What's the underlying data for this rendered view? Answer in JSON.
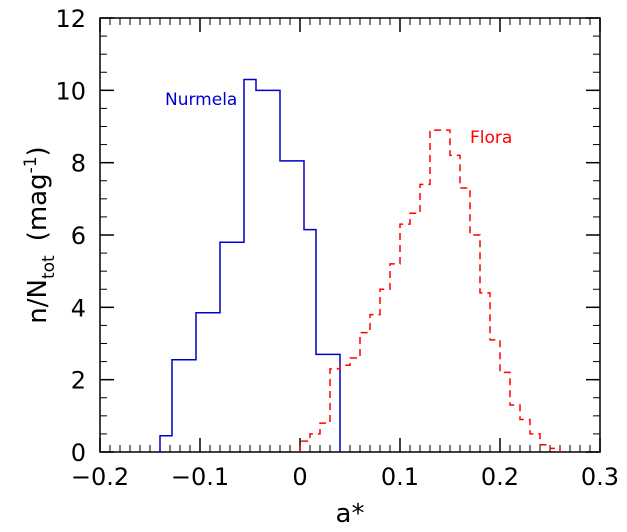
{
  "chart_data": {
    "type": "histogram",
    "xlabel": "a*",
    "ylabel": "n/N",
    "ylabel_subscript": "tot",
    "ylabel_unit_open": "(mag",
    "ylabel_unit_exp": "-1",
    "ylabel_unit_close": ")",
    "xlim": [
      -0.2,
      0.3
    ],
    "ylim": [
      0,
      12
    ],
    "x_ticks": [
      {
        "value": -0.2,
        "label": "−0.2"
      },
      {
        "value": -0.1,
        "label": "−0.1"
      },
      {
        "value": 0,
        "label": "0"
      },
      {
        "value": 0.1,
        "label": "0.1"
      },
      {
        "value": 0.2,
        "label": "0.2"
      },
      {
        "value": 0.3,
        "label": "0.3"
      }
    ],
    "y_ticks": [
      {
        "value": 0,
        "label": "0"
      },
      {
        "value": 2,
        "label": "2"
      },
      {
        "value": 4,
        "label": "4"
      },
      {
        "value": 6,
        "label": "6"
      },
      {
        "value": 8,
        "label": "8"
      },
      {
        "value": 10,
        "label": "10"
      },
      {
        "value": 12,
        "label": "12"
      }
    ],
    "grid": false,
    "series": [
      {
        "name": "Nurmela",
        "color": "#0000cc",
        "style": "solid",
        "label_anchor": {
          "x": -0.135,
          "y": 9.6
        },
        "bins": [
          {
            "x0": -0.14,
            "x1": -0.128,
            "y": 0.45
          },
          {
            "x0": -0.128,
            "x1": -0.116,
            "y": 2.55
          },
          {
            "x0": -0.116,
            "x1": -0.104,
            "y": 2.55
          },
          {
            "x0": -0.104,
            "x1": -0.092,
            "y": 3.85
          },
          {
            "x0": -0.092,
            "x1": -0.08,
            "y": 3.85
          },
          {
            "x0": -0.08,
            "x1": -0.068,
            "y": 5.8
          },
          {
            "x0": -0.068,
            "x1": -0.056,
            "y": 5.8
          },
          {
            "x0": -0.056,
            "x1": -0.044,
            "y": 10.3
          },
          {
            "x0": -0.044,
            "x1": -0.032,
            "y": 10.0
          },
          {
            "x0": -0.032,
            "x1": -0.02,
            "y": 10.0
          },
          {
            "x0": -0.02,
            "x1": -0.008,
            "y": 8.05
          },
          {
            "x0": -0.008,
            "x1": 0.004,
            "y": 8.05
          },
          {
            "x0": 0.004,
            "x1": 0.016,
            "y": 6.15
          },
          {
            "x0": 0.016,
            "x1": 0.028,
            "y": 2.7
          },
          {
            "x0": 0.028,
            "x1": 0.04,
            "y": 2.7
          }
        ]
      },
      {
        "name": "Flora",
        "color": "#ff0000",
        "style": "dashed",
        "label_anchor": {
          "x": 0.17,
          "y": 8.55
        },
        "bins": [
          {
            "x0": 0.0,
            "x1": 0.01,
            "y": 0.3
          },
          {
            "x0": 0.01,
            "x1": 0.02,
            "y": 0.5
          },
          {
            "x0": 0.02,
            "x1": 0.03,
            "y": 0.8
          },
          {
            "x0": 0.03,
            "x1": 0.04,
            "y": 2.3
          },
          {
            "x0": 0.04,
            "x1": 0.05,
            "y": 2.4
          },
          {
            "x0": 0.05,
            "x1": 0.06,
            "y": 2.6
          },
          {
            "x0": 0.06,
            "x1": 0.07,
            "y": 3.3
          },
          {
            "x0": 0.07,
            "x1": 0.08,
            "y": 3.8
          },
          {
            "x0": 0.08,
            "x1": 0.09,
            "y": 4.5
          },
          {
            "x0": 0.09,
            "x1": 0.1,
            "y": 5.2
          },
          {
            "x0": 0.1,
            "x1": 0.11,
            "y": 6.3
          },
          {
            "x0": 0.11,
            "x1": 0.12,
            "y": 6.6
          },
          {
            "x0": 0.12,
            "x1": 0.13,
            "y": 7.4
          },
          {
            "x0": 0.13,
            "x1": 0.14,
            "y": 8.9
          },
          {
            "x0": 0.14,
            "x1": 0.15,
            "y": 8.9
          },
          {
            "x0": 0.15,
            "x1": 0.16,
            "y": 8.2
          },
          {
            "x0": 0.16,
            "x1": 0.17,
            "y": 7.3
          },
          {
            "x0": 0.17,
            "x1": 0.18,
            "y": 6.0
          },
          {
            "x0": 0.18,
            "x1": 0.19,
            "y": 4.4
          },
          {
            "x0": 0.19,
            "x1": 0.2,
            "y": 3.1
          },
          {
            "x0": 0.2,
            "x1": 0.21,
            "y": 2.2
          },
          {
            "x0": 0.21,
            "x1": 0.22,
            "y": 1.3
          },
          {
            "x0": 0.22,
            "x1": 0.23,
            "y": 0.9
          },
          {
            "x0": 0.23,
            "x1": 0.24,
            "y": 0.5
          },
          {
            "x0": 0.24,
            "x1": 0.25,
            "y": 0.2
          },
          {
            "x0": 0.25,
            "x1": 0.26,
            "y": 0.1
          }
        ]
      }
    ]
  }
}
